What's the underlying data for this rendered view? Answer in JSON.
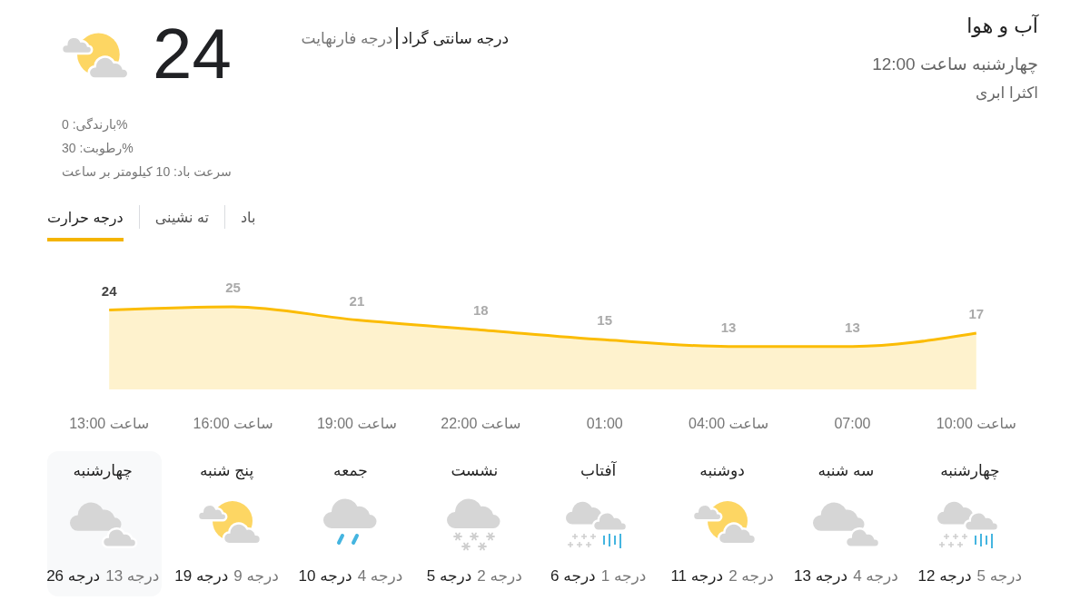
{
  "chart_data": [
    {
      "type": "other",
      "title": "آب و هوا",
      "subtitle": "چهارشنبه ساعت 12:00",
      "annotations": [
        "اکثرا ابری",
        "24",
        "درجه سانتی گراد",
        "درجه فارنهایت",
        "بارندگی: 0%",
        "رطوبت: 30%",
        "سرعت باد: 10 کیلومتر بر ساعت",
        "درجه حرارت",
        "ته نشینی",
        "باد"
      ]
    },
    {
      "type": "area",
      "categories": [
        "ساعت 13:00",
        "ساعت 16:00",
        "ساعت 19:00",
        "ساعت 22:00",
        "01:00",
        "ساعت 04:00",
        "07:00",
        "ساعت 10:00"
      ],
      "values": [
        24,
        25,
        21,
        18,
        15,
        13,
        13,
        17
      ],
      "color": "#fbbc04",
      "data_labels": true,
      "tick_labels": "x"
    },
    {
      "type": "other",
      "categories": [
        "چهارشنبه",
        "پنج شنبه",
        "جمعه",
        "نشست",
        "آفتاب",
        "دوشنبه",
        "سه شنبه",
        "چهارشنبه"
      ],
      "annotations": [
        "26 درجه",
        "13 درجه",
        "19 درجه",
        "9 درجه",
        "10 درجه",
        "4 درجه",
        "5 درجه",
        "2 درجه",
        "6 درجه",
        "1 درجه",
        "11 درجه",
        "2 درجه",
        "13 درجه",
        "4 درجه",
        "12 درجه",
        "5 درجه"
      ]
    }
  ]
}
